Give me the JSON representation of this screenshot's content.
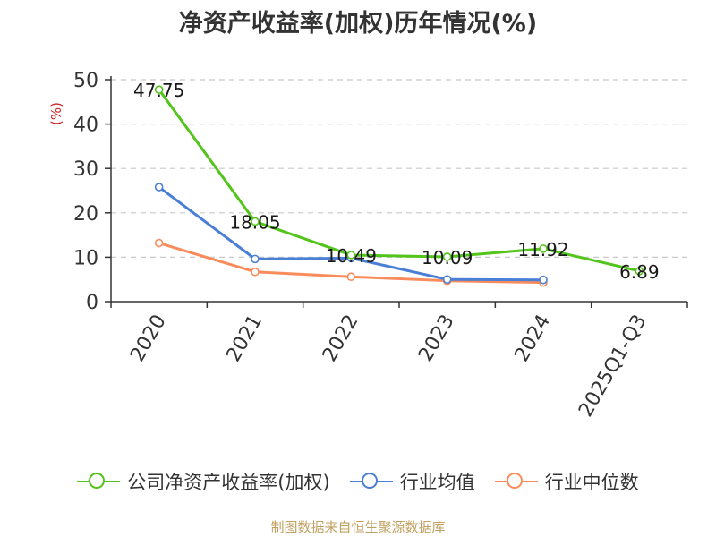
{
  "chart_data": {
    "type": "line",
    "title": "净资产收益率(加权)历年情况(%)",
    "ylabel": "(%)",
    "xlabel": "",
    "ylim": [
      0,
      50
    ],
    "yticks": [
      0,
      10,
      20,
      30,
      40,
      50
    ],
    "grid": "horizontal-dashed",
    "legend_position": "bottom",
    "categories": [
      "2020",
      "2021",
      "2022",
      "2023",
      "2024",
      "2025Q1-Q3"
    ],
    "series": [
      {
        "name": "公司净资产收益率(加权)",
        "color": "#52c41a",
        "values": [
          47.75,
          18.05,
          10.49,
          10.09,
          11.92,
          6.89
        ],
        "labels": [
          "47.75",
          "18.05",
          "10.49",
          "10.09",
          "11.92",
          "6.89"
        ]
      },
      {
        "name": "行业均值",
        "color": "#4a7fd6",
        "values": [
          25.8,
          9.6,
          9.8,
          5.0,
          4.9,
          null
        ]
      },
      {
        "name": "行业中位数",
        "color": "#fa8c5c",
        "values": [
          13.2,
          6.7,
          5.6,
          4.7,
          4.3,
          null
        ]
      }
    ]
  },
  "source": "制图数据来自恒生聚源数据库"
}
